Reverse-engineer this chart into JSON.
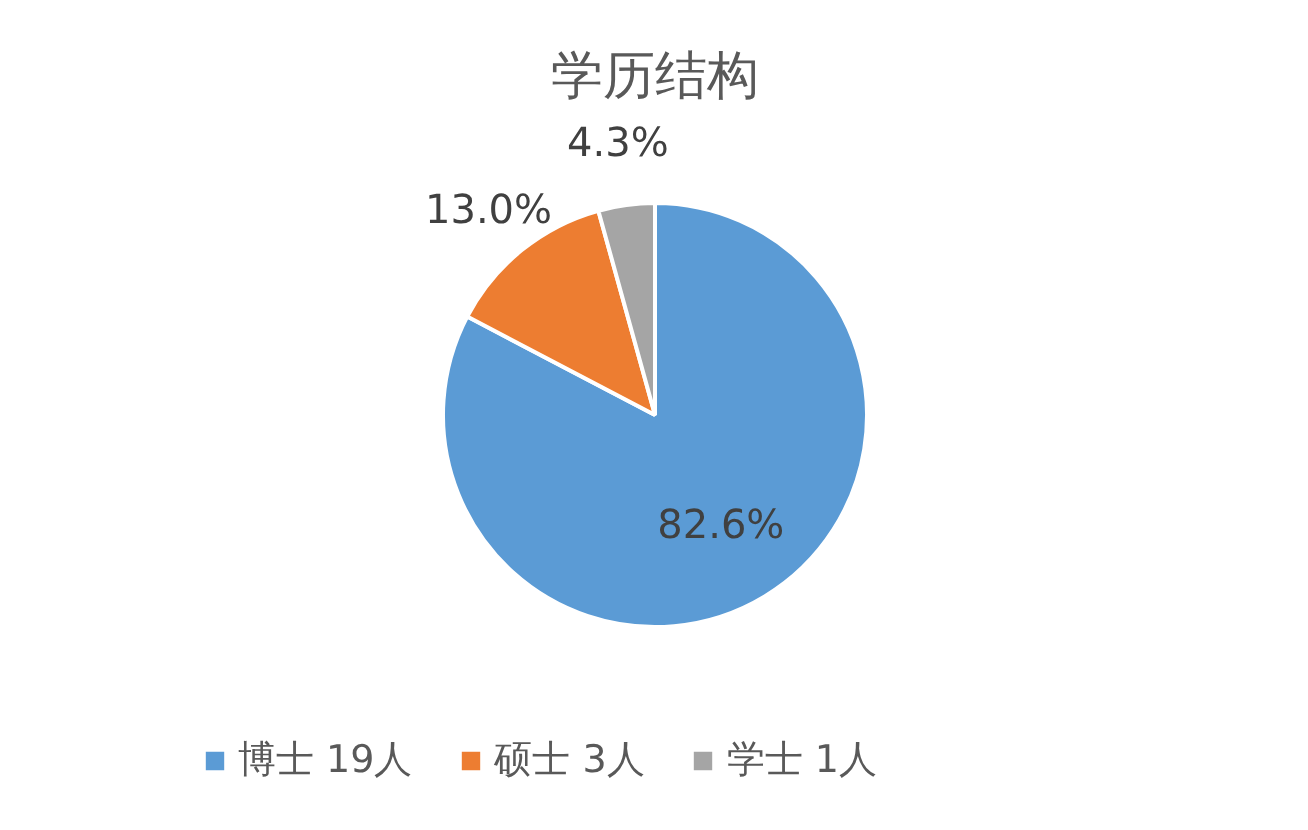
{
  "chart_data": {
    "type": "pie",
    "title": "学历结构",
    "categories": [
      "博士 19人",
      "硕士 3人",
      "学士 1人"
    ],
    "values": [
      82.6,
      13.0,
      4.3
    ],
    "colors": [
      "#5b9bd5",
      "#ed7d31",
      "#a5a5a5"
    ],
    "value_labels": [
      "82.6%",
      "13.0%",
      "4.3%"
    ],
    "legend": "bottom"
  }
}
